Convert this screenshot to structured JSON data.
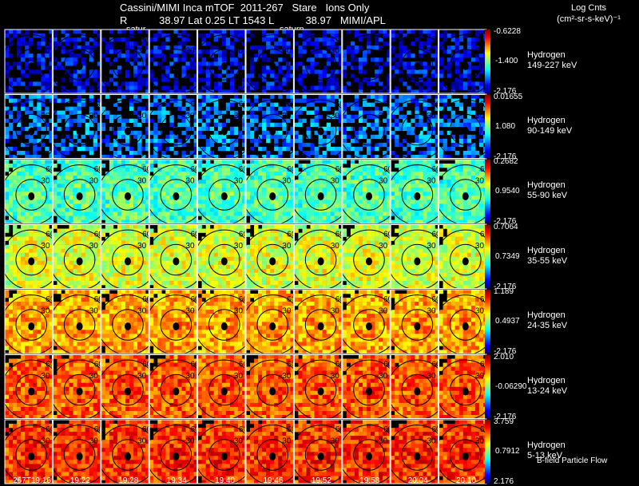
{
  "header": {
    "title_line": "Cassini/MIMI Inca mTOF  2011-267   Stare   Ions Only",
    "sub_line": "R           38.97 Lat 0.25 LT 1543 L           38.97   MIMI/APL",
    "saturn_labels": [
      "satur",
      "saturn"
    ]
  },
  "units": {
    "line1": "Log Cnts",
    "line2": "(cm²-sr-s-keV)⁻¹"
  },
  "footer": {
    "legend": "B-field Particle Flow"
  },
  "colors": {
    "background": "#000000",
    "frame": "#ffffff",
    "contour": "#000000",
    "scale": [
      "#000080",
      "#0000ff",
      "#0080ff",
      "#00ffff",
      "#80ff80",
      "#ffff00",
      "#ff8000",
      "#ff0000",
      "#800000"
    ]
  },
  "chart_data": {
    "type": "heatmap",
    "title": "Cassini/MIMI Inca mTOF  2011-267   Stare   Ions Only",
    "x_times": [
      "267T19:16",
      "19:22",
      "19:28",
      "19:34",
      "19:40",
      "19:46",
      "19:52",
      "19:58",
      "20:04",
      "20:10"
    ],
    "contour_labels": [
      "30",
      "60",
      "90"
    ],
    "rows": [
      {
        "species": "Hydrogen",
        "energy": "149-227 keV",
        "scale_max": "-0.6228",
        "scale_mid": "-1.400",
        "scale_min": "-2.176",
        "level": 0.15
      },
      {
        "species": "Hydrogen",
        "energy": "90-149 keV",
        "scale_max": "0.01655",
        "scale_mid": "1.080",
        "scale_min": "-2.176",
        "level": 0.28
      },
      {
        "species": "Hydrogen",
        "energy": "55-90 keV",
        "scale_max": "0.2682",
        "scale_mid": "0.9540",
        "scale_min": "-2.176",
        "level": 0.48
      },
      {
        "species": "Hydrogen",
        "energy": "35-55 keV",
        "scale_max": "0.7064",
        "scale_mid": "0.7349",
        "scale_min": "-2.176",
        "level": 0.62
      },
      {
        "species": "Hydrogen",
        "energy": "24-35 keV",
        "scale_max": "1.189",
        "scale_mid": "0.4937",
        "scale_min": "-2.176",
        "level": 0.74
      },
      {
        "species": "Hydrogen",
        "energy": "13-24 keV",
        "scale_max": "2.010",
        "scale_mid": "-0.06290",
        "scale_min": "-2.176",
        "level": 0.82
      },
      {
        "species": "Hydrogen",
        "energy": "5-13 keV",
        "scale_max": "3.759",
        "scale_mid": "0.7912",
        "scale_min": "2.176",
        "level": 0.86
      }
    ]
  }
}
